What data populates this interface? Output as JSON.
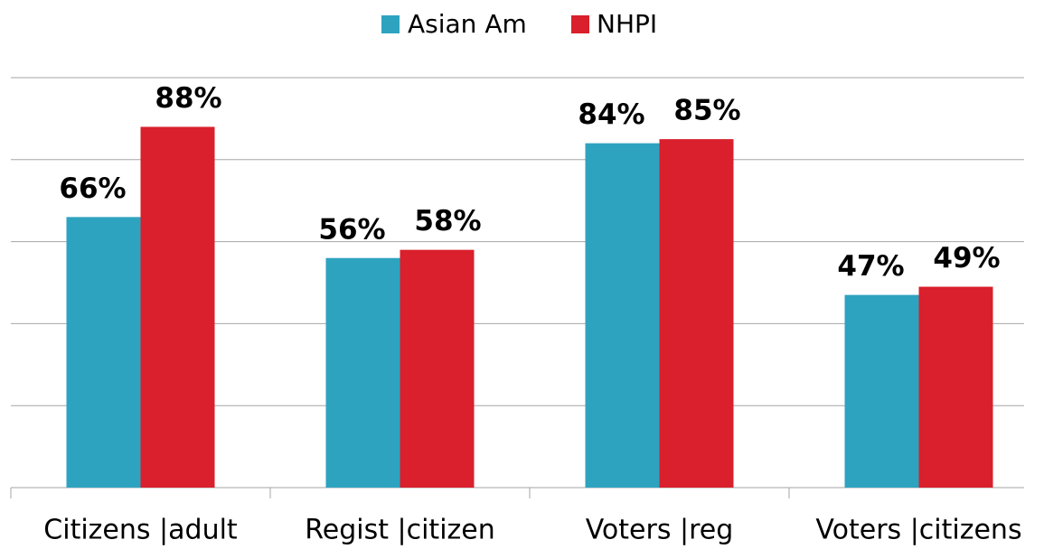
{
  "chart_data": {
    "type": "bar",
    "categories": [
      "Citizens |adult",
      "Regist |citizen",
      "Voters |reg",
      "Voters |citizens"
    ],
    "series": [
      {
        "name": "Asian Am",
        "color": "#2ea3c0",
        "values": [
          66,
          56,
          84,
          47
        ],
        "value_labels": [
          "66%",
          "56%",
          "84%",
          "47%"
        ]
      },
      {
        "name": "NHPI",
        "color": "#d9202c",
        "values": [
          88,
          58,
          85,
          49
        ],
        "value_labels": [
          "88%",
          "58%",
          "85%",
          "49%"
        ]
      }
    ],
    "ylim": [
      0,
      100
    ],
    "yticks": [
      0,
      20,
      40,
      60,
      80,
      100
    ],
    "grid": true,
    "legend": "top"
  }
}
